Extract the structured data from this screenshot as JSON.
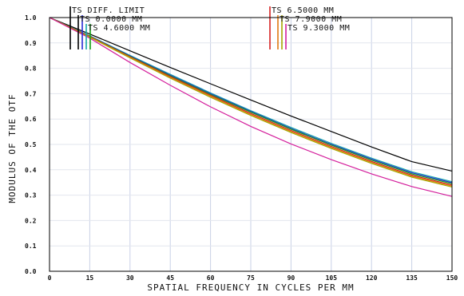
{
  "chart_data": {
    "type": "line",
    "xlabel": "SPATIAL FREQUENCY IN CYCLES PER MM",
    "ylabel": "MODULUS OF THE OTF",
    "xlim": [
      0,
      150
    ],
    "ylim": [
      0,
      1.0
    ],
    "x_ticks": [
      "0",
      "15",
      "30",
      "45",
      "60",
      "75",
      "90",
      "105",
      "120",
      "135",
      "150"
    ],
    "y_ticks": [
      "0.0",
      "0.1",
      "0.2",
      "0.3",
      "0.4",
      "0.5",
      "0.6",
      "0.7",
      "0.8",
      "0.9",
      "1.0"
    ],
    "grid": true,
    "legend": [
      {
        "label": "TS DIFF. LIMIT",
        "group": "left",
        "colors": [
          "#000000"
        ]
      },
      {
        "label": "TS 0.0000 MM",
        "group": "left",
        "colors": [
          "#000000",
          "#2b2bd6"
        ]
      },
      {
        "label": "TS 4.6000 MM",
        "group": "left",
        "colors": [
          "#16a8a8",
          "#16a316"
        ]
      },
      {
        "label": "TS 6.5000 MM",
        "group": "right",
        "colors": [
          "#d62020"
        ]
      },
      {
        "label": "TS 7.9000 MM",
        "group": "right",
        "colors": [
          "#e07a10",
          "#a6a600"
        ]
      },
      {
        "label": "TS 9.3000 MM",
        "group": "right",
        "colors": [
          "#d41f9c"
        ]
      }
    ],
    "x": [
      0,
      15,
      30,
      45,
      60,
      75,
      90,
      105,
      120,
      135,
      150
    ],
    "series": [
      {
        "color": "#000000",
        "values": [
          1.0,
          0.935,
          0.869,
          0.803,
          0.739,
          0.675,
          0.612,
          0.551,
          0.49,
          0.432,
          0.395
        ]
      },
      {
        "color": "#16a8a8",
        "values": [
          1.0,
          0.928,
          0.851,
          0.776,
          0.703,
          0.633,
          0.567,
          0.504,
          0.446,
          0.392,
          0.353
        ]
      },
      {
        "color": "#2b2bd6",
        "values": [
          1.0,
          0.927,
          0.849,
          0.773,
          0.7,
          0.63,
          0.563,
          0.5,
          0.442,
          0.388,
          0.349
        ]
      },
      {
        "color": "#16a316",
        "values": [
          1.0,
          0.926,
          0.847,
          0.77,
          0.697,
          0.627,
          0.56,
          0.497,
          0.438,
          0.384,
          0.345
        ]
      },
      {
        "color": "#d62020",
        "values": [
          1.0,
          0.925,
          0.845,
          0.767,
          0.693,
          0.622,
          0.555,
          0.492,
          0.433,
          0.379,
          0.34
        ]
      },
      {
        "color": "#e07a10",
        "values": [
          1.0,
          0.924,
          0.843,
          0.764,
          0.69,
          0.618,
          0.551,
          0.488,
          0.429,
          0.375,
          0.336
        ]
      },
      {
        "color": "#a6a600",
        "values": [
          1.0,
          0.923,
          0.841,
          0.761,
          0.686,
          0.614,
          0.547,
          0.484,
          0.425,
          0.371,
          0.332
        ]
      },
      {
        "color": "#d41f9c",
        "values": [
          1.0,
          0.919,
          0.823,
          0.733,
          0.648,
          0.571,
          0.502,
          0.44,
          0.384,
          0.334,
          0.295
        ]
      }
    ]
  }
}
